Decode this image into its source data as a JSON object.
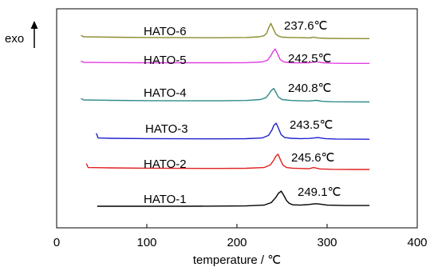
{
  "chart_data": {
    "type": "line",
    "xlabel": "temperature / ℃",
    "ylabel": "exo",
    "xlim": [
      0,
      400
    ],
    "xticks": [
      0,
      100,
      200,
      300,
      400
    ],
    "y_ticks_shown": false,
    "grid": false,
    "series": [
      {
        "name": "HATO-6",
        "peak_label": "237.6℃",
        "color": "#8B8B2E",
        "x": [
          27,
          30,
          60,
          100,
          140,
          180,
          210,
          225,
          230,
          233,
          235,
          237.6,
          240,
          243,
          246,
          250,
          260,
          270,
          280,
          285,
          290,
          300,
          320,
          347
        ],
        "y": [
          0.2,
          0.0,
          -0.05,
          -0.1,
          -0.12,
          -0.13,
          -0.1,
          0.0,
          0.15,
          0.5,
          1.2,
          1.85,
          1.2,
          0.4,
          0.1,
          -0.05,
          -0.1,
          -0.12,
          -0.15,
          -0.05,
          -0.18,
          -0.22,
          -0.24,
          -0.25
        ]
      },
      {
        "name": "HATO-5",
        "peak_label": "242.5℃",
        "color": "#E040E0",
        "x": [
          27,
          30,
          60,
          100,
          140,
          180,
          210,
          228,
          234,
          238,
          240,
          242.5,
          245,
          248,
          252,
          260,
          270,
          280,
          288,
          295,
          305,
          320,
          347
        ],
        "y": [
          0.2,
          0.0,
          -0.03,
          -0.05,
          -0.06,
          -0.06,
          -0.04,
          0.05,
          0.3,
          1.0,
          1.5,
          1.85,
          1.2,
          0.4,
          0.05,
          -0.05,
          -0.08,
          -0.05,
          0.1,
          -0.05,
          -0.12,
          -0.15,
          -0.15
        ]
      },
      {
        "name": "HATO-4",
        "peak_label": "240.8℃",
        "color": "#2E8B87",
        "x": [
          27,
          30,
          60,
          100,
          140,
          180,
          210,
          226,
          232,
          236,
          238,
          240.8,
          243,
          246,
          250,
          260,
          270,
          280,
          288,
          295,
          305,
          320,
          347
        ],
        "y": [
          0.2,
          0.0,
          -0.05,
          -0.1,
          -0.12,
          -0.12,
          -0.08,
          0.05,
          0.3,
          0.9,
          1.3,
          1.6,
          1.1,
          0.4,
          0.05,
          -0.08,
          -0.12,
          -0.15,
          -0.05,
          -0.2,
          -0.25,
          -0.27,
          -0.28
        ]
      },
      {
        "name": "HATO-3",
        "peak_label": "243.5℃",
        "color": "#2020D0",
        "x": [
          44,
          46,
          60,
          100,
          140,
          180,
          210,
          228,
          235,
          239,
          241,
          243.5,
          246,
          249,
          253,
          260,
          270,
          280,
          290,
          298,
          310,
          330,
          347
        ],
        "y": [
          0.7,
          0.05,
          0.0,
          -0.05,
          -0.07,
          -0.08,
          -0.06,
          0.05,
          0.4,
          1.2,
          1.8,
          2.1,
          1.4,
          0.5,
          0.1,
          0.0,
          -0.05,
          -0.02,
          0.1,
          -0.05,
          -0.1,
          -0.12,
          -0.13
        ]
      },
      {
        "name": "HATO-2",
        "peak_label": "245.6℃",
        "color": "#E02020",
        "x": [
          33,
          35,
          60,
          100,
          140,
          180,
          210,
          230,
          237,
          241,
          243,
          245.6,
          248,
          251,
          255,
          262,
          270,
          280,
          285,
          292,
          305,
          330,
          347
        ],
        "y": [
          0.6,
          0.05,
          0.0,
          -0.05,
          -0.07,
          -0.08,
          -0.06,
          0.05,
          0.4,
          1.1,
          1.6,
          1.9,
          1.2,
          0.4,
          0.05,
          -0.05,
          -0.08,
          -0.12,
          0.05,
          -0.15,
          -0.2,
          -0.22,
          -0.22
        ]
      },
      {
        "name": "HATO-1",
        "peak_label": "249.1℃",
        "color": "#000000",
        "x": [
          45,
          60,
          100,
          140,
          180,
          210,
          230,
          238,
          243,
          246,
          249.1,
          252,
          255,
          258,
          262,
          270,
          280,
          287,
          292,
          300,
          320,
          347
        ],
        "y": [
          0.0,
          0.0,
          0.0,
          0.0,
          0.02,
          0.05,
          0.15,
          0.5,
          1.2,
          1.8,
          2.1,
          1.5,
          0.8,
          0.4,
          0.2,
          0.15,
          0.25,
          0.35,
          0.3,
          0.15,
          0.1,
          0.1
        ]
      }
    ]
  }
}
